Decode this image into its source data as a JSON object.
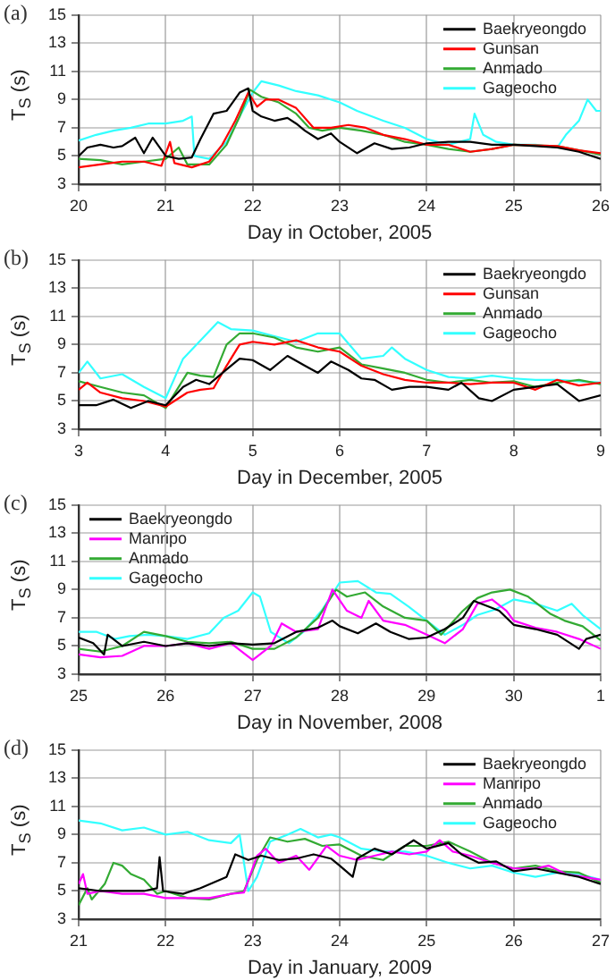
{
  "chart_data": [
    {
      "type": "line",
      "title": "(a)",
      "xlabel": "Day in October, 2005",
      "ylabel": "T$_{S}$ (s)",
      "xlim": [
        20,
        26
      ],
      "xticks": [
        20,
        21,
        22,
        23,
        24,
        25,
        26
      ],
      "ylim": [
        3,
        15
      ],
      "yticks": [
        3,
        5,
        7,
        9,
        11,
        13,
        15
      ],
      "grid": true,
      "legend": "top right",
      "marker": "none",
      "line_style": "solid",
      "series": [
        {
          "name": "Baekryeongdo",
          "color": "#000000",
          "x": [
            20,
            20.1,
            20.25,
            20.4,
            20.5,
            20.65,
            20.75,
            20.85,
            21,
            21.15,
            21.3,
            21.4,
            21.55,
            21.7,
            21.85,
            21.95,
            22,
            22.1,
            22.25,
            22.4,
            22.5,
            22.6,
            22.75,
            22.9,
            23,
            23.2,
            23.4,
            23.6,
            23.8,
            24,
            24.25,
            24.5,
            24.75,
            25,
            25.25,
            25.5,
            25.75,
            26
          ],
          "values": [
            5.0,
            5.6,
            5.8,
            5.6,
            5.7,
            6.3,
            5.2,
            6.3,
            5.0,
            4.8,
            4.9,
            6.2,
            8.0,
            8.2,
            9.5,
            9.8,
            8.2,
            7.8,
            7.5,
            7.7,
            7.3,
            6.8,
            6.2,
            6.6,
            6.0,
            5.2,
            5.9,
            5.5,
            5.6,
            5.9,
            6.0,
            6.0,
            5.8,
            5.8,
            5.7,
            5.6,
            5.3,
            4.8
          ]
        },
        {
          "name": "Gunsan",
          "color": "#ff0000",
          "x": [
            20,
            20.25,
            20.5,
            20.75,
            20.95,
            21.05,
            21.1,
            21.3,
            21.5,
            21.65,
            21.8,
            21.95,
            22.05,
            22.15,
            22.3,
            22.5,
            22.7,
            22.9,
            23.1,
            23.3,
            23.5,
            23.75,
            24,
            24.25,
            24.5,
            24.75,
            25,
            25.5,
            25.75,
            26
          ],
          "values": [
            4.2,
            4.4,
            4.6,
            4.6,
            4.3,
            6.0,
            4.5,
            4.2,
            4.6,
            5.8,
            7.5,
            9.5,
            8.5,
            9.0,
            9.0,
            8.4,
            7.0,
            7.0,
            7.2,
            7.0,
            6.5,
            6.2,
            5.8,
            5.8,
            5.3,
            5.5,
            5.8,
            5.7,
            5.4,
            5.2
          ]
        },
        {
          "name": "Anmado",
          "color": "#33aa33",
          "x": [
            20,
            20.25,
            20.5,
            20.75,
            21,
            21.15,
            21.25,
            21.5,
            21.7,
            21.85,
            21.97,
            22.1,
            22.3,
            22.5,
            22.65,
            22.8,
            23,
            23.25,
            23.5,
            23.75,
            24,
            24.25,
            24.5,
            24.75,
            25,
            25.5,
            25.75,
            26
          ],
          "values": [
            4.8,
            4.7,
            4.4,
            4.6,
            4.8,
            5.6,
            4.4,
            4.4,
            5.8,
            7.8,
            9.7,
            9.2,
            8.8,
            8.0,
            7.0,
            6.8,
            7.0,
            6.8,
            6.5,
            6.0,
            5.8,
            5.5,
            5.3,
            5.5,
            5.8,
            5.7,
            5.4,
            5.1
          ]
        },
        {
          "name": "Gageocho",
          "color": "#33ffff",
          "x": [
            20,
            20.2,
            20.4,
            20.6,
            20.8,
            21,
            21.2,
            21.3,
            21.33,
            21.5,
            21.7,
            21.85,
            22,
            22.1,
            22.3,
            22.5,
            22.75,
            23,
            23.2,
            23.5,
            23.75,
            24,
            24.25,
            24.5,
            24.55,
            24.65,
            24.8,
            25,
            25.25,
            25.5,
            25.6,
            25.75,
            25.85,
            25.95,
            26
          ],
          "values": [
            6.1,
            6.5,
            6.8,
            7.0,
            7.3,
            7.3,
            7.5,
            7.8,
            5.0,
            4.8,
            6.0,
            7.8,
            9.5,
            10.3,
            10.0,
            9.6,
            9.3,
            8.8,
            8.2,
            7.5,
            7.0,
            6.2,
            5.8,
            6.2,
            8.0,
            6.5,
            6.0,
            5.8,
            5.8,
            5.6,
            6.5,
            7.5,
            9.0,
            8.2,
            8.2
          ]
        }
      ]
    },
    {
      "type": "line",
      "title": "(b)",
      "xlabel": "Day in December, 2005",
      "ylabel": "T$_{S}$ (s)",
      "xlim": [
        3,
        9
      ],
      "xticks": [
        3,
        4,
        5,
        6,
        7,
        8,
        9
      ],
      "ylim": [
        3,
        15
      ],
      "yticks": [
        3,
        5,
        7,
        9,
        11,
        13,
        15
      ],
      "grid": true,
      "legend": "top right",
      "marker": "none",
      "line_style": "solid",
      "series": [
        {
          "name": "Baekryeongdo",
          "color": "#000000",
          "x": [
            3,
            3.2,
            3.4,
            3.6,
            3.8,
            4,
            4.2,
            4.35,
            4.5,
            4.75,
            4.85,
            5,
            5.2,
            5.4,
            5.6,
            5.75,
            5.9,
            6.1,
            6.25,
            6.4,
            6.6,
            6.8,
            7,
            7.25,
            7.4,
            7.6,
            7.75,
            8,
            8.25,
            8.5,
            8.75,
            9
          ],
          "values": [
            4.7,
            4.7,
            5.1,
            4.5,
            5.0,
            4.7,
            6.0,
            6.5,
            6.2,
            7.5,
            8.0,
            7.9,
            7.2,
            8.2,
            7.5,
            7.0,
            7.8,
            7.2,
            6.6,
            6.5,
            5.8,
            6.0,
            6.0,
            5.8,
            6.3,
            5.2,
            5.0,
            5.8,
            6.0,
            6.2,
            5.0,
            5.4
          ]
        },
        {
          "name": "Gunsan",
          "color": "#ff0000",
          "x": [
            3,
            3.1,
            3.25,
            3.5,
            3.75,
            4,
            4.25,
            4.4,
            4.55,
            4.7,
            4.85,
            5,
            5.25,
            5.5,
            5.75,
            6,
            6.25,
            6.5,
            6.75,
            7,
            7.25,
            7.5,
            7.75,
            8,
            8.25,
            8.5,
            8.75,
            9
          ],
          "values": [
            5.8,
            6.3,
            5.6,
            5.2,
            5.0,
            4.6,
            5.6,
            5.8,
            5.9,
            7.5,
            9.0,
            9.2,
            9.0,
            9.3,
            8.8,
            8.5,
            7.5,
            6.9,
            6.5,
            6.3,
            6.3,
            6.2,
            6.3,
            6.3,
            5.8,
            6.5,
            6.1,
            6.3
          ]
        },
        {
          "name": "Anmado",
          "color": "#33aa33",
          "x": [
            3,
            3.25,
            3.5,
            3.75,
            4,
            4.25,
            4.4,
            4.55,
            4.7,
            4.85,
            5,
            5.25,
            5.5,
            5.75,
            6,
            6.25,
            6.5,
            6.75,
            7,
            7.25,
            7.5,
            7.75,
            8,
            8.25,
            8.5,
            8.75,
            9
          ],
          "values": [
            6.4,
            6.0,
            5.6,
            5.4,
            4.5,
            7.0,
            6.8,
            6.7,
            9.0,
            9.8,
            9.8,
            9.5,
            8.8,
            8.5,
            8.8,
            7.6,
            7.3,
            7.0,
            6.5,
            6.3,
            6.5,
            6.3,
            6.4,
            6.0,
            6.3,
            6.5,
            6.2
          ]
        },
        {
          "name": "Gageocho",
          "color": "#33ffff",
          "x": [
            3,
            3.1,
            3.25,
            3.5,
            3.75,
            4,
            4.2,
            4.4,
            4.6,
            4.75,
            5,
            5.25,
            5.5,
            5.75,
            6,
            6.25,
            6.5,
            6.6,
            6.75,
            7,
            7.25,
            7.5,
            7.75,
            8,
            8.25,
            8.5,
            8.75,
            9
          ],
          "values": [
            7.0,
            7.8,
            6.6,
            6.9,
            6.0,
            5.2,
            8.0,
            9.3,
            10.6,
            10.1,
            10.0,
            9.6,
            9.2,
            9.8,
            9.8,
            8.0,
            8.2,
            8.8,
            8.0,
            7.2,
            6.7,
            6.6,
            6.8,
            6.6,
            6.5,
            6.5,
            6.4,
            6.3
          ]
        }
      ]
    },
    {
      "type": "line",
      "title": "(c)",
      "xlabel": "Day in November, 2008",
      "ylabel": "T$_{S}$ (s)",
      "xlim": [
        "2008-11-25",
        "2008-12-01"
      ],
      "xticks": [
        {
          "value": "2008-11-25",
          "label": "25"
        },
        {
          "value": "2008-11-26",
          "label": "26"
        },
        {
          "value": "2008-11-27",
          "label": "27"
        },
        {
          "value": "2008-11-28",
          "label": "28"
        },
        {
          "value": "2008-11-29",
          "label": "29"
        },
        {
          "value": "2008-11-30",
          "label": "30"
        },
        {
          "value": "2008-12-01",
          "label": "1"
        }
      ],
      "ylim": [
        3,
        15
      ],
      "yticks": [
        3,
        5,
        7,
        9,
        11,
        13,
        15
      ],
      "grid": true,
      "legend": "top left",
      "marker": "none",
      "line_style": "solid",
      "series": [
        {
          "name": "Baekryeongdo",
          "color": "#000000",
          "x": [
            "2008-11-25T00:00",
            "2008-11-25T04:00",
            "2008-11-25T07:00",
            "2008-11-25T08:00",
            "2008-11-25T12:00",
            "2008-11-25T18:00",
            "2008-11-26T00:00",
            "2008-11-26T06:00",
            "2008-11-26T12:00",
            "2008-11-26T18:00",
            "2008-11-27T00:00",
            "2008-11-27T06:00",
            "2008-11-27T12:00",
            "2008-11-27T18:00",
            "2008-11-27T22:00",
            "2008-11-28T00:00",
            "2008-11-28T05:00",
            "2008-11-28T10:00",
            "2008-11-28T14:00",
            "2008-11-28T19:00",
            "2008-11-29T00:00",
            "2008-11-29T05:00",
            "2008-11-29T10:00",
            "2008-11-29T13:00",
            "2008-11-29T17:00",
            "2008-11-29T20:00",
            "2008-11-30T00:00",
            "2008-11-30T06:00",
            "2008-11-30T12:00",
            "2008-11-30T18:00",
            "2008-11-30T20:00",
            "2008-12-01T00:00"
          ],
          "values": [
            5.6,
            5.2,
            4.4,
            5.8,
            5.0,
            5.3,
            5.0,
            5.2,
            5.0,
            5.2,
            5.1,
            5.2,
            6.0,
            6.3,
            6.8,
            6.4,
            5.9,
            6.6,
            6.0,
            5.5,
            5.6,
            6.2,
            7.0,
            8.2,
            7.8,
            7.5,
            6.5,
            6.2,
            5.8,
            4.8,
            5.5,
            5.8
          ]
        },
        {
          "name": "Manripo",
          "color": "#ff00ff",
          "x": [
            "2008-11-25T00:00",
            "2008-11-25T06:00",
            "2008-11-25T12:00",
            "2008-11-25T18:00",
            "2008-11-26T00:00",
            "2008-11-26T06:00",
            "2008-11-26T12:00",
            "2008-11-26T18:00",
            "2008-11-27T00:00",
            "2008-11-27T05:00",
            "2008-11-27T08:00",
            "2008-11-27T12:00",
            "2008-11-27T18:00",
            "2008-11-27T22:00",
            "2008-11-28T02:00",
            "2008-11-28T06:00",
            "2008-11-28T08:00",
            "2008-11-28T12:00",
            "2008-11-28T18:00",
            "2008-11-29T00:00",
            "2008-11-29T05:00",
            "2008-11-29T10:00",
            "2008-11-29T14:00",
            "2008-11-29T18:00",
            "2008-11-29T22:00",
            "2008-11-30T00:00",
            "2008-11-30T06:00",
            "2008-11-30T12:00",
            "2008-11-30T18:00",
            "2008-12-01T00:00"
          ],
          "values": [
            4.4,
            4.2,
            4.3,
            5.0,
            5.0,
            5.2,
            4.8,
            5.2,
            4.0,
            5.0,
            6.6,
            6.0,
            6.2,
            9.0,
            7.5,
            7.0,
            8.2,
            6.8,
            6.5,
            5.8,
            5.2,
            6.2,
            8.0,
            8.3,
            7.5,
            6.8,
            6.3,
            6.0,
            5.5,
            4.8
          ]
        },
        {
          "name": "Anmado",
          "color": "#33aa33",
          "x": [
            "2008-11-25T00:00",
            "2008-11-25T06:00",
            "2008-11-25T12:00",
            "2008-11-25T18:00",
            "2008-11-26T00:00",
            "2008-11-26T06:00",
            "2008-11-26T12:00",
            "2008-11-26T18:00",
            "2008-11-27T00:00",
            "2008-11-27T06:00",
            "2008-11-27T12:00",
            "2008-11-27T18:00",
            "2008-11-27T23:00",
            "2008-11-28T02:00",
            "2008-11-28T07:00",
            "2008-11-28T12:00",
            "2008-11-28T18:00",
            "2008-11-29T00:00",
            "2008-11-29T04:00",
            "2008-11-29T10:00",
            "2008-11-29T14:00",
            "2008-11-29T18:00",
            "2008-11-29T23:00",
            "2008-11-30T04:00",
            "2008-11-30T10:00",
            "2008-11-30T14:00",
            "2008-11-30T19:00",
            "2008-12-01T00:00"
          ],
          "values": [
            4.8,
            4.6,
            5.0,
            6.0,
            5.7,
            5.3,
            5.2,
            5.3,
            4.8,
            4.8,
            5.6,
            7.0,
            9.0,
            8.5,
            8.8,
            7.8,
            7.0,
            6.8,
            5.8,
            7.5,
            8.4,
            8.8,
            9.0,
            8.5,
            7.3,
            6.8,
            6.4,
            5.4
          ]
        },
        {
          "name": "Gageocho",
          "color": "#33ffff",
          "x": [
            "2008-11-25T00:00",
            "2008-11-25T05:00",
            "2008-11-25T10:00",
            "2008-11-25T14:00",
            "2008-11-25T19:00",
            "2008-11-26T00:00",
            "2008-11-26T06:00",
            "2008-11-26T12:00",
            "2008-11-26T16:00",
            "2008-11-26T20:00",
            "2008-11-27T00:00",
            "2008-11-27T02:00",
            "2008-11-27T05:00",
            "2008-11-27T10:00",
            "2008-11-27T14:00",
            "2008-11-27T19:00",
            "2008-11-28T00:00",
            "2008-11-28T05:00",
            "2008-11-28T10:00",
            "2008-11-28T14:00",
            "2008-11-28T19:00",
            "2008-11-29T00:00",
            "2008-11-29T05:00",
            "2008-11-29T10:00",
            "2008-11-29T14:00",
            "2008-11-29T19:00",
            "2008-11-30T00:00",
            "2008-11-30T06:00",
            "2008-11-30T12:00",
            "2008-11-30T16:00",
            "2008-11-30T19:00",
            "2008-12-01T00:00"
          ],
          "values": [
            6.0,
            6.0,
            5.5,
            5.7,
            5.8,
            5.7,
            5.5,
            5.9,
            7.0,
            7.5,
            8.8,
            8.5,
            6.0,
            5.2,
            6.0,
            7.5,
            9.5,
            9.6,
            8.8,
            8.7,
            7.8,
            6.8,
            5.8,
            6.5,
            7.2,
            7.6,
            8.3,
            8.0,
            7.5,
            8.0,
            7.2,
            6.2
          ]
        }
      ]
    },
    {
      "type": "line",
      "title": "(d)",
      "xlabel": "Day in January, 2009",
      "ylabel": "T$_{S}$ (s)",
      "xlim": [
        21,
        27
      ],
      "xticks": [
        21,
        22,
        23,
        24,
        25,
        26,
        27
      ],
      "ylim": [
        3,
        15
      ],
      "yticks": [
        3,
        5,
        7,
        9,
        11,
        13,
        15
      ],
      "grid": true,
      "legend": "top right",
      "marker": "none",
      "line_style": "solid",
      "series": [
        {
          "name": "Baekryeongdo",
          "color": "#000000",
          "x": [
            21,
            21.25,
            21.5,
            21.75,
            21.9,
            21.93,
            21.97,
            22.2,
            22.4,
            22.55,
            22.7,
            22.8,
            22.95,
            23.1,
            23.3,
            23.5,
            23.7,
            23.9,
            24,
            24.15,
            24.2,
            24.4,
            24.6,
            24.85,
            25,
            25.25,
            25.4,
            25.6,
            25.8,
            26,
            26.25,
            26.5,
            26.75,
            27
          ],
          "values": [
            5.2,
            5.0,
            5.0,
            5.0,
            5.2,
            7.4,
            5.0,
            4.8,
            5.2,
            5.6,
            6.0,
            7.6,
            7.2,
            7.5,
            7.2,
            7.3,
            7.6,
            7.3,
            6.8,
            6.0,
            7.3,
            8.0,
            7.6,
            8.6,
            8.0,
            8.4,
            7.6,
            7.0,
            7.1,
            6.4,
            6.6,
            6.3,
            6.0,
            5.5
          ]
        },
        {
          "name": "Manripo",
          "color": "#ff00ff",
          "x": [
            21,
            21.05,
            21.1,
            21.25,
            21.5,
            21.75,
            22,
            22.25,
            22.5,
            22.75,
            22.9,
            23.05,
            23.15,
            23.3,
            23.5,
            23.65,
            23.85,
            24,
            24.2,
            24.4,
            24.6,
            24.8,
            25,
            25.15,
            25.3,
            25.5,
            25.75,
            26,
            26.25,
            26.4,
            26.6,
            26.8,
            27
          ],
          "values": [
            5.5,
            6.2,
            4.8,
            5.0,
            4.8,
            4.8,
            4.5,
            4.5,
            4.5,
            4.8,
            4.9,
            7.5,
            8.0,
            7.0,
            7.5,
            6.5,
            8.2,
            7.5,
            7.2,
            7.5,
            7.8,
            7.6,
            7.8,
            8.6,
            7.8,
            7.5,
            7.0,
            6.6,
            6.6,
            6.8,
            6.2,
            6.0,
            5.8
          ]
        },
        {
          "name": "Anmado",
          "color": "#33aa33",
          "x": [
            21,
            21.1,
            21.15,
            21.3,
            21.4,
            21.5,
            21.6,
            21.75,
            21.9,
            22,
            22.25,
            22.5,
            22.75,
            22.9,
            23.05,
            23.2,
            23.4,
            23.6,
            23.8,
            24,
            24.25,
            24.5,
            24.75,
            25,
            25.25,
            25.5,
            25.75,
            26,
            26.25,
            26.5,
            26.75,
            27
          ],
          "values": [
            4.0,
            5.2,
            4.4,
            5.5,
            7.0,
            6.8,
            6.2,
            5.8,
            4.8,
            5.0,
            4.5,
            4.4,
            4.8,
            5.0,
            7.2,
            8.8,
            8.5,
            8.7,
            8.2,
            8.3,
            7.5,
            7.2,
            8.2,
            8.2,
            8.5,
            7.8,
            7.0,
            6.6,
            6.8,
            6.4,
            6.3,
            5.6
          ]
        },
        {
          "name": "Gageocho",
          "color": "#33ffff",
          "x": [
            21,
            21.25,
            21.5,
            21.75,
            22,
            22.25,
            22.5,
            22.75,
            22.85,
            22.95,
            23.05,
            23.2,
            23.4,
            23.55,
            23.75,
            23.9,
            24,
            24.25,
            24.5,
            24.75,
            25,
            25.25,
            25.5,
            25.75,
            26,
            26.25,
            26.5,
            26.75,
            27
          ],
          "values": [
            10.0,
            9.8,
            9.3,
            9.5,
            9.0,
            9.2,
            8.6,
            8.4,
            9.0,
            5.0,
            6.0,
            8.5,
            9.0,
            9.4,
            8.8,
            9.0,
            8.8,
            8.0,
            7.8,
            7.8,
            7.5,
            7.0,
            6.6,
            6.8,
            6.3,
            6.0,
            6.3,
            6.2,
            5.8
          ]
        }
      ]
    }
  ]
}
